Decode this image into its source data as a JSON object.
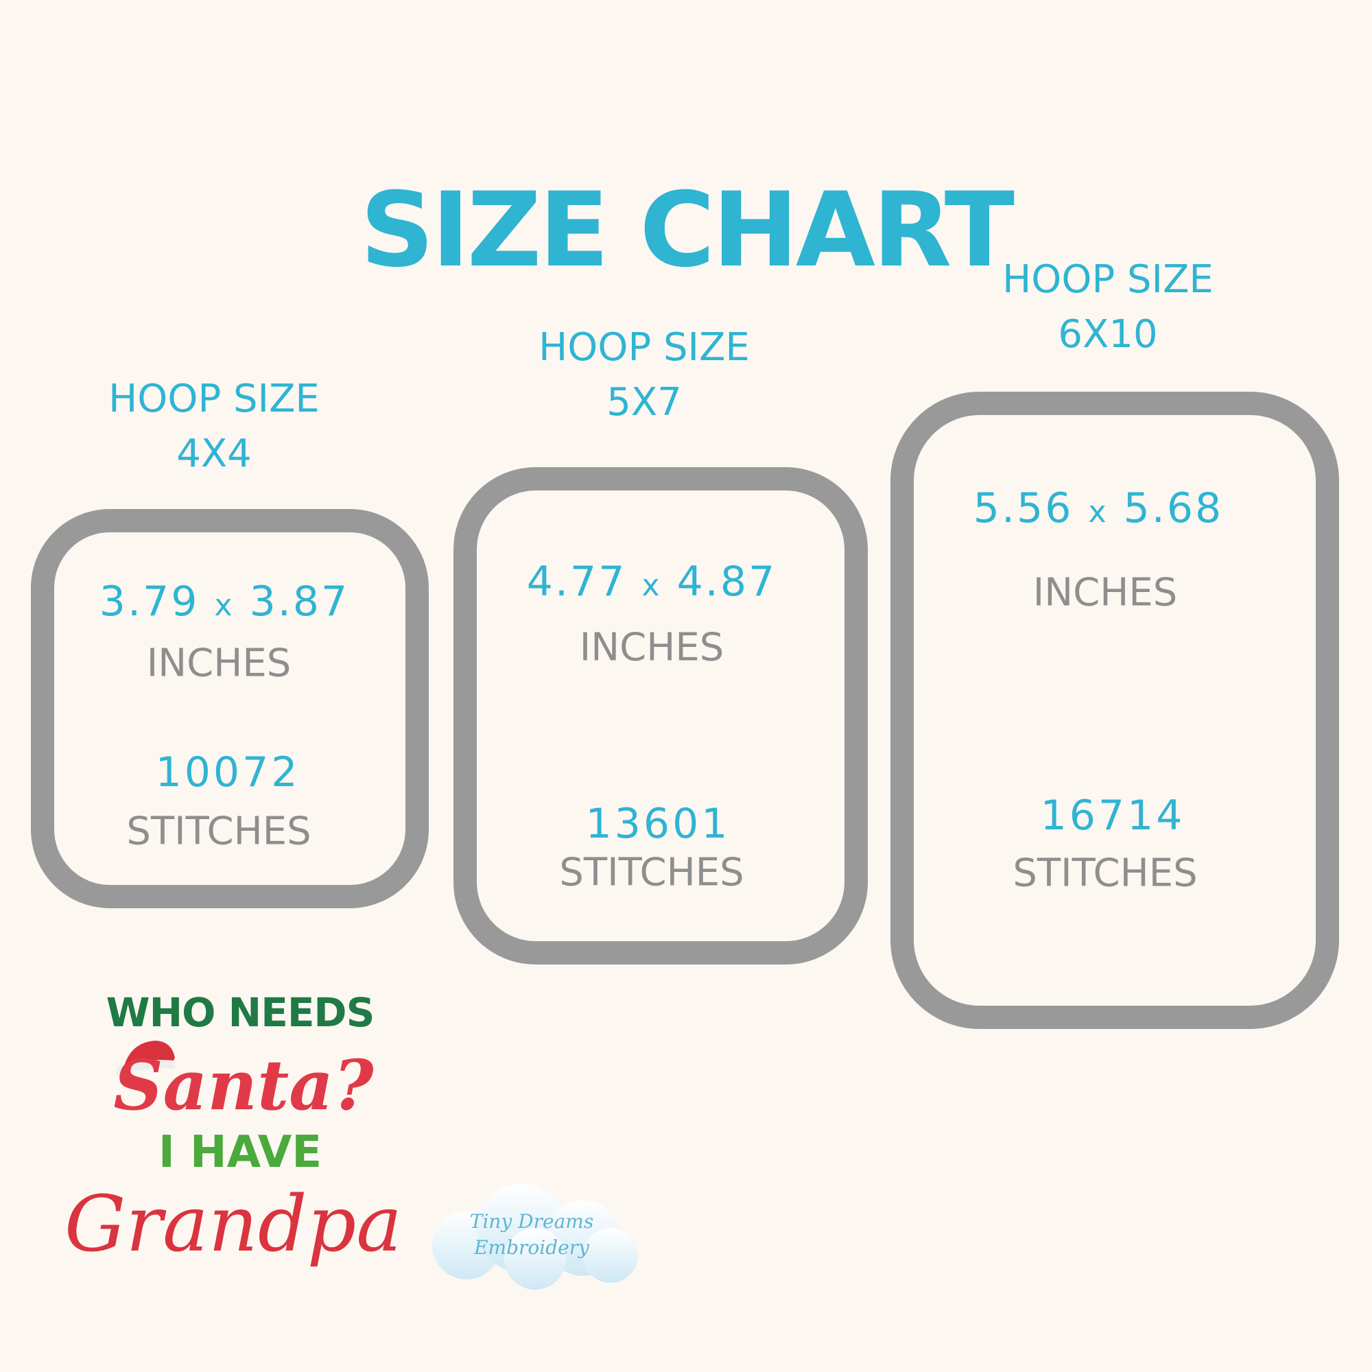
{
  "title": "SIZE CHART",
  "colors": {
    "accent": "#2fb4d2",
    "gray_text": "#8e8e8e",
    "hoop_outline": "#999999",
    "background": "#fdf7f2"
  },
  "hoops": [
    {
      "label": "HOOP SIZE",
      "size": "4X4",
      "width": "3.79",
      "sep": "x",
      "height": "3.87",
      "unit": "INCHES",
      "stitches": "10072",
      "stitches_label": "STITCHES"
    },
    {
      "label": "HOOP SIZE",
      "size": "5X7",
      "width": "4.77",
      "sep": "x",
      "height": "4.87",
      "unit": "INCHES",
      "stitches": "13601",
      "stitches_label": "STITCHES"
    },
    {
      "label": "HOOP SIZE",
      "size": "6X10",
      "width": "5.56",
      "sep": "x",
      "height": "5.68",
      "unit": "INCHES",
      "stitches": "16714",
      "stitches_label": "STITCHES"
    }
  ],
  "design": {
    "line1": "WHO NEEDS",
    "line2": "Santa?",
    "line3": "I HAVE",
    "line4": "Grandpa"
  },
  "watermark": {
    "line1": "Tiny Dreams",
    "line2": "Embroidery"
  }
}
